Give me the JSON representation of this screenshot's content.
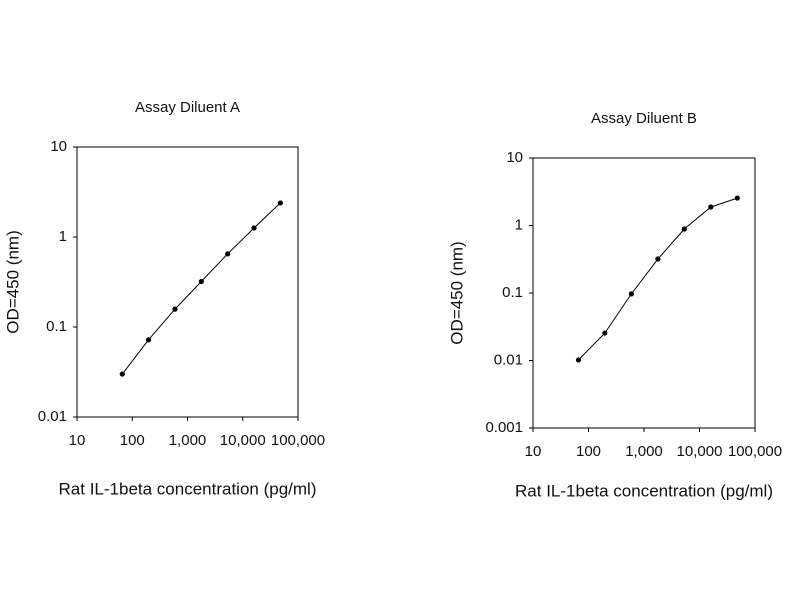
{
  "chart_data": [
    {
      "type": "line",
      "title": "Assay Diluent A",
      "x_label": "Rat IL-1beta concentration (pg/ml)",
      "y_label": "OD=450 (nm)",
      "x": [
        66,
        197,
        593,
        1778,
        5333,
        16000,
        48000
      ],
      "values": [
        0.03,
        0.072,
        0.158,
        0.32,
        0.65,
        1.26,
        2.39
      ],
      "color": "#000000",
      "log_x": true,
      "log_y": true,
      "xlim": [
        10,
        100000
      ],
      "xticks": [
        10,
        100,
        {
          "value": 1000,
          "label": "1,000"
        },
        {
          "value": 10000,
          "label": "10,000"
        },
        {
          "value": 100000,
          "label": "100,000"
        }
      ],
      "ylim": [
        0.01,
        10
      ],
      "yticks": [
        0.01,
        0.1,
        1,
        10
      ]
    },
    {
      "type": "line",
      "title": "Assay Diluent B",
      "x_label": "Rat IL-1beta concentration (pg/ml)",
      "y_label": "OD=450 (nm)",
      "x": [
        66,
        197,
        593,
        1778,
        5333,
        16000,
        48000
      ],
      "values": [
        0.0102,
        0.0255,
        0.097,
        0.319,
        0.887,
        1.88,
        2.55
      ],
      "color": "#000000",
      "log_x": true,
      "log_y": true,
      "xlim": [
        10,
        100000
      ],
      "xticks": [
        10,
        100,
        {
          "value": 1000,
          "label": "1,000"
        },
        {
          "value": 10000,
          "label": "10,000"
        },
        {
          "value": 100000,
          "label": "100,000"
        }
      ],
      "ylim": [
        0.001,
        10
      ],
      "yticks": [
        0.001,
        0.01,
        0.1,
        1,
        10
      ]
    }
  ]
}
